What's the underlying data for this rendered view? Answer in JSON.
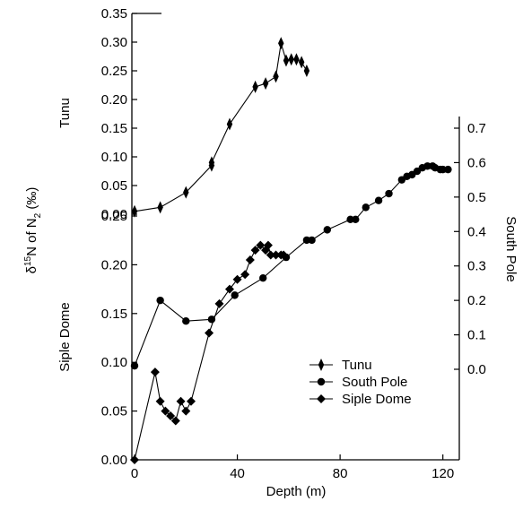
{
  "chart_data": {
    "type": "line",
    "xlabel": "Depth (m)",
    "xlim": [
      0,
      125
    ],
    "xticks": [
      0,
      40,
      80,
      120
    ],
    "ylabel": "δ15N of N2 (‰)",
    "ylabel_parts": {
      "delta": "δ",
      "sup": "15",
      "mid": "N of N",
      "sub": "2",
      "unit": " (‰)"
    },
    "axes": {
      "tunu": {
        "label": "Tunu",
        "ylim": [
          0.0,
          0.35
        ],
        "ticks": [
          "0.00",
          "0.05",
          "0.10",
          "0.15",
          "0.20",
          "0.25",
          "0.30",
          "0.35"
        ]
      },
      "siple": {
        "label": "Siple Dome",
        "ylim": [
          0.0,
          0.25
        ],
        "ticks": [
          "0.00",
          "0.05",
          "0.10",
          "0.15",
          "0.20",
          "0.25"
        ]
      },
      "south_pole": {
        "label": "South Pole",
        "ylim": [
          0.0,
          0.7
        ],
        "ticks": [
          "0.0",
          "0.1",
          "0.2",
          "0.3",
          "0.4",
          "0.5",
          "0.6",
          "0.7"
        ]
      }
    },
    "series": [
      {
        "name": "Tunu",
        "axis": "tunu",
        "marker": "thin-diamond",
        "points": [
          [
            0,
            0.005
          ],
          [
            10,
            0.012
          ],
          [
            20,
            0.038
          ],
          [
            30,
            0.085
          ],
          [
            30,
            0.09
          ],
          [
            37,
            0.157
          ],
          [
            47,
            0.222
          ],
          [
            51,
            0.228
          ],
          [
            55,
            0.24
          ],
          [
            57,
            0.298
          ],
          [
            59,
            0.268
          ],
          [
            61,
            0.27
          ],
          [
            63,
            0.27
          ],
          [
            65,
            0.265
          ],
          [
            67,
            0.25
          ]
        ]
      },
      {
        "name": "South Pole",
        "axis": "south_pole",
        "marker": "circle",
        "points": [
          [
            0,
            0.01
          ],
          [
            10,
            0.2
          ],
          [
            20,
            0.14
          ],
          [
            30,
            0.145
          ],
          [
            39,
            0.215
          ],
          [
            50,
            0.265
          ],
          [
            59,
            0.325
          ],
          [
            67,
            0.375
          ],
          [
            69,
            0.375
          ],
          [
            75,
            0.405
          ],
          [
            84,
            0.435
          ],
          [
            86,
            0.435
          ],
          [
            90,
            0.47
          ],
          [
            95,
            0.49
          ],
          [
            99,
            0.51
          ],
          [
            104,
            0.55
          ],
          [
            106,
            0.56
          ],
          [
            108,
            0.565
          ],
          [
            110,
            0.575
          ],
          [
            112,
            0.585
          ],
          [
            114,
            0.59
          ],
          [
            116,
            0.59
          ],
          [
            117,
            0.585
          ],
          [
            119,
            0.58
          ],
          [
            120,
            0.58
          ],
          [
            122,
            0.58
          ]
        ]
      },
      {
        "name": "Siple Dome",
        "axis": "siple",
        "marker": "diamond",
        "points": [
          [
            0,
            0.0
          ],
          [
            8,
            0.09
          ],
          [
            10,
            0.06
          ],
          [
            12,
            0.05
          ],
          [
            14,
            0.045
          ],
          [
            16,
            0.04
          ],
          [
            18,
            0.06
          ],
          [
            20,
            0.05
          ],
          [
            22,
            0.06
          ],
          [
            29,
            0.13
          ],
          [
            33,
            0.16
          ],
          [
            37,
            0.175
          ],
          [
            40,
            0.185
          ],
          [
            43,
            0.19
          ],
          [
            45,
            0.205
          ],
          [
            47,
            0.215
          ],
          [
            49,
            0.22
          ],
          [
            51,
            0.215
          ],
          [
            52,
            0.22
          ],
          [
            53,
            0.21
          ],
          [
            55,
            0.21
          ],
          [
            57,
            0.21
          ],
          [
            58,
            0.21
          ]
        ]
      }
    ],
    "legend": {
      "placement": "lower-right",
      "entries": [
        "Tunu",
        "South Pole",
        "Siple Dome"
      ]
    },
    "grid": false
  }
}
